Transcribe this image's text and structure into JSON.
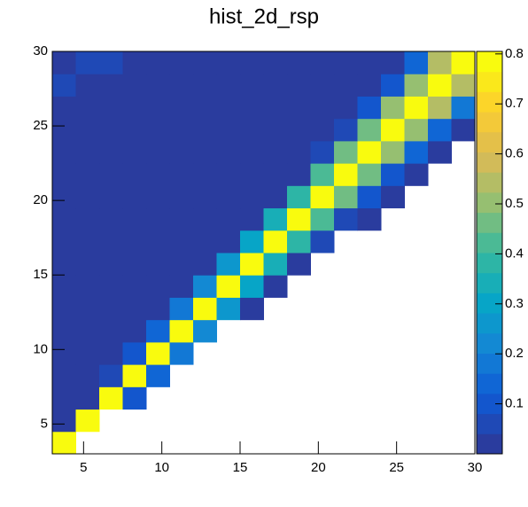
{
  "chart_data": {
    "type": "heatmap",
    "title": "hist_2d_rsp",
    "xbins": [
      3,
      4.5,
      6,
      7.5,
      9,
      10.5,
      12,
      13.5,
      15,
      16.5,
      18,
      19.5,
      21,
      22.5,
      24,
      25.5,
      27,
      28.5,
      30
    ],
    "ybins": [
      3,
      4.5,
      6,
      7.5,
      9,
      10.5,
      12,
      13.5,
      15,
      16.5,
      18,
      19.5,
      21,
      22.5,
      24,
      25.5,
      27,
      28.5,
      30
    ],
    "z": [
      [
        0.8,
        null,
        null,
        null,
        null,
        null,
        null,
        null,
        null,
        null,
        null,
        null,
        null,
        null,
        null,
        null,
        null,
        null
      ],
      [
        0.01,
        0.8,
        null,
        null,
        null,
        null,
        null,
        null,
        null,
        null,
        null,
        null,
        null,
        null,
        null,
        null,
        null,
        null
      ],
      [
        0.01,
        0.02,
        0.8,
        0.09,
        null,
        null,
        null,
        null,
        null,
        null,
        null,
        null,
        null,
        null,
        null,
        null,
        null,
        null
      ],
      [
        0.01,
        0.01,
        0.05,
        0.8,
        0.13,
        null,
        null,
        null,
        null,
        null,
        null,
        null,
        null,
        null,
        null,
        null,
        null,
        null
      ],
      [
        0.01,
        0.01,
        0.01,
        0.09,
        0.8,
        0.18,
        null,
        null,
        null,
        null,
        null,
        null,
        null,
        null,
        null,
        null,
        null,
        null
      ],
      [
        0.01,
        0.01,
        0.01,
        0.01,
        0.13,
        0.8,
        0.22,
        null,
        null,
        null,
        null,
        null,
        null,
        null,
        null,
        null,
        null,
        null
      ],
      [
        0.01,
        0.01,
        0.01,
        0.01,
        0.01,
        0.18,
        0.8,
        0.27,
        0.02,
        null,
        null,
        null,
        null,
        null,
        null,
        null,
        null,
        null
      ],
      [
        0.01,
        0.01,
        0.01,
        0.01,
        0.01,
        0.01,
        0.22,
        0.8,
        0.31,
        0.03,
        null,
        null,
        null,
        null,
        null,
        null,
        null,
        null
      ],
      [
        0.01,
        0.01,
        0.01,
        0.01,
        0.01,
        0.01,
        0.01,
        0.27,
        0.8,
        0.35,
        0.04,
        null,
        null,
        null,
        null,
        null,
        null,
        null
      ],
      [
        0.01,
        0.01,
        0.01,
        0.01,
        0.01,
        0.01,
        0.01,
        0.01,
        0.31,
        0.8,
        0.38,
        0.06,
        null,
        null,
        null,
        null,
        null,
        null
      ],
      [
        0.01,
        0.01,
        0.01,
        0.01,
        0.01,
        0.01,
        0.01,
        0.01,
        0.02,
        0.35,
        0.8,
        0.42,
        0.08,
        0.01,
        null,
        null,
        null,
        null
      ],
      [
        0.01,
        0.01,
        0.01,
        0.01,
        0.01,
        0.01,
        0.01,
        0.01,
        0.01,
        0.03,
        0.38,
        0.8,
        0.45,
        0.1,
        0.01,
        null,
        null,
        null
      ],
      [
        0.01,
        0.01,
        0.01,
        0.01,
        0.01,
        0.01,
        0.01,
        0.01,
        0.01,
        0.01,
        0.04,
        0.42,
        0.8,
        0.47,
        0.12,
        0.02,
        null,
        null
      ],
      [
        0.01,
        0.01,
        0.01,
        0.01,
        0.01,
        0.01,
        0.01,
        0.01,
        0.01,
        0.01,
        0.01,
        0.06,
        0.45,
        0.8,
        0.5,
        0.14,
        0.02,
        null
      ],
      [
        0.01,
        0.01,
        0.01,
        0.01,
        0.01,
        0.01,
        0.01,
        0.01,
        0.01,
        0.01,
        0.01,
        0.01,
        0.08,
        0.47,
        0.8,
        0.52,
        0.16,
        0.03
      ],
      [
        0.01,
        0.01,
        0.01,
        0.01,
        0.01,
        0.01,
        0.01,
        0.01,
        0.01,
        0.01,
        0.01,
        0.01,
        0.01,
        0.1,
        0.5,
        0.8,
        0.54,
        0.19
      ],
      [
        0.08,
        0.01,
        0.01,
        0.01,
        0.01,
        0.01,
        0.01,
        0.01,
        0.01,
        0.01,
        0.01,
        0.01,
        0.01,
        0.01,
        0.12,
        0.52,
        0.8,
        0.56
      ],
      [
        0.01,
        0.08,
        0.05,
        0.01,
        0.01,
        0.01,
        0.01,
        0.01,
        0.01,
        0.01,
        0.01,
        0.01,
        0.01,
        0.01,
        0.01,
        0.14,
        0.54,
        0.8
      ]
    ],
    "xlim": [
      3,
      30
    ],
    "ylim": [
      3,
      30
    ],
    "xticks": [
      5,
      10,
      15,
      20,
      25,
      30
    ],
    "yticks": [
      5,
      10,
      15,
      20,
      25,
      30
    ],
    "zlim": [
      0,
      0.805
    ],
    "zticks": [
      0.1,
      0.2,
      0.3,
      0.4,
      0.5,
      0.6,
      0.7,
      0.8
    ],
    "colorscale": [
      "#2a3c9e",
      "#0f5bd6",
      "#1485d4",
      "#06a7c6",
      "#38b99e",
      "#92bf73",
      "#d9ba56",
      "#fcce2e",
      "#f9fb0e"
    ]
  }
}
